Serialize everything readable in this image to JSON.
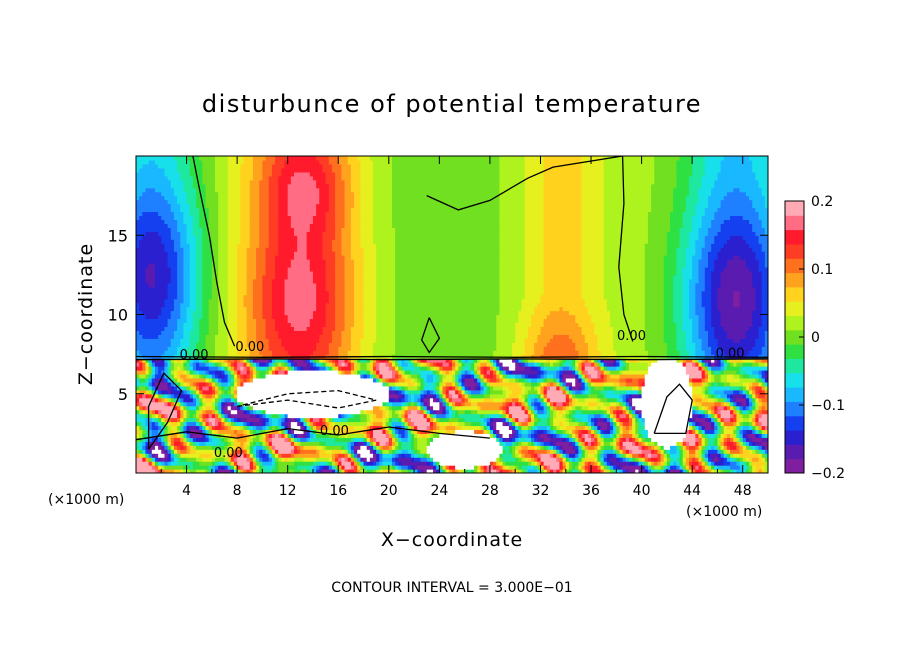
{
  "chart_data": {
    "type": "heatmap",
    "title": "disturbunce of potential temperature",
    "xlabel": "X−coordinate",
    "ylabel": "Z−coordinate",
    "x_unit_label": "(×1000 m)",
    "x_unit_label_right": "(×1000 m)",
    "x_ticks": [
      4,
      8,
      12,
      16,
      20,
      24,
      28,
      32,
      36,
      40,
      44,
      48
    ],
    "y_ticks": [
      5,
      10,
      15
    ],
    "xlim": [
      0,
      50
    ],
    "ylim": [
      0,
      20
    ],
    "colorbar": {
      "ticks": [
        {
          "value": 0.2,
          "label": "0.2"
        },
        {
          "value": 0.1,
          "label": "0.1"
        },
        {
          "value": 0,
          "label": "0"
        },
        {
          "value": -0.1,
          "label": "−0.1"
        },
        {
          "value": -0.2,
          "label": "−0.2"
        }
      ],
      "range": [
        -0.2,
        0.2
      ]
    },
    "contour_labels": [
      {
        "text": "0.00",
        "x": 9.0,
        "y": 7.7
      },
      {
        "text": "0.00",
        "x": 39.2,
        "y": 8.4
      },
      {
        "text": "0.00",
        "x": 47.0,
        "y": 7.3
      },
      {
        "text": "0.00",
        "x": 15.7,
        "y": 2.4
      },
      {
        "text": "0.00",
        "x": 7.3,
        "y": 1.0
      },
      {
        "text": "0.00",
        "x": 4.6,
        "y": 7.2
      }
    ],
    "contour_interval": "CONTOUR INTERVAL = 3.000E−01"
  },
  "palette": [
    "#ffffff",
    "#7f1fa0",
    "#5a1cb0",
    "#2a20d0",
    "#1540f0",
    "#1f80ff",
    "#19b8ff",
    "#18e0ea",
    "#1ee8a0",
    "#2ee042",
    "#70e020",
    "#aef21e",
    "#e6f01e",
    "#ffd21e",
    "#ffa31e",
    "#ff701e",
    "#ff3c24",
    "#ff1a2c",
    "#ff6c84",
    "#ffaab4"
  ]
}
